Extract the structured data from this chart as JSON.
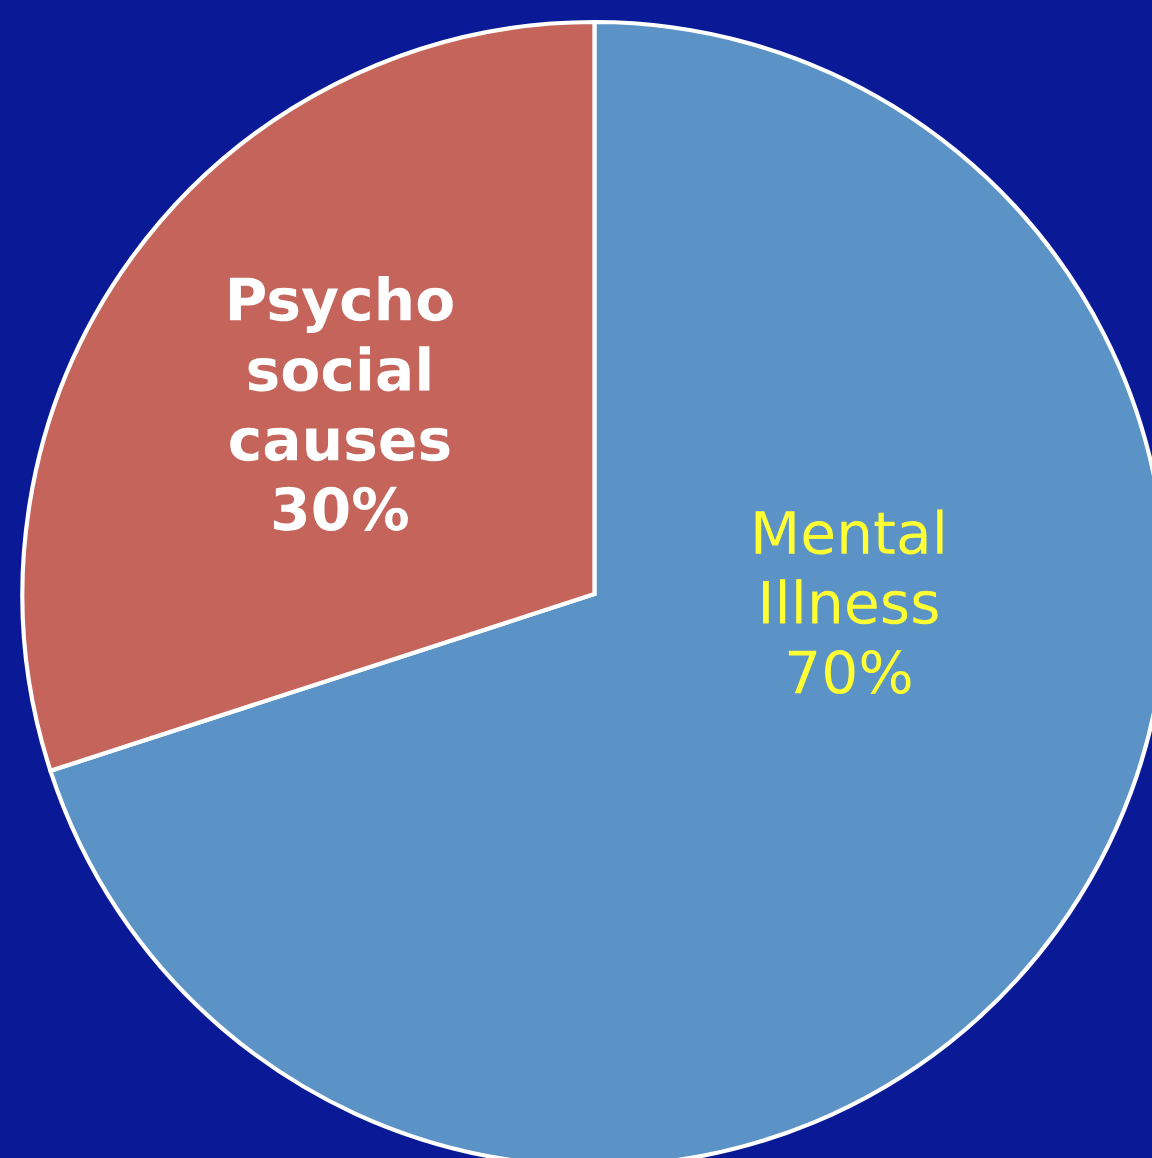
{
  "chart_data": {
    "type": "pie",
    "categories": [
      "Mental Illness",
      "Psycho social causes"
    ],
    "values": [
      70,
      30
    ],
    "colors": [
      "#5b93c6",
      "#c5645a"
    ],
    "value_labels": [
      "70%",
      "30%"
    ]
  }
}
